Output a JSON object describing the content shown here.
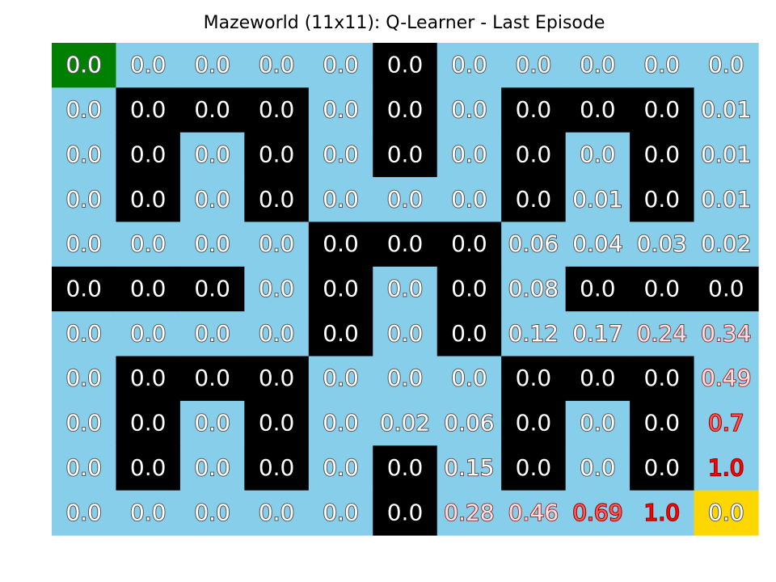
{
  "chart_data": {
    "type": "heatmap",
    "title": "Mazeworld (11x11): Q-Learner - Last Episode",
    "rows": 11,
    "cols": 11,
    "colors": {
      "open": "#87ceeb",
      "wall": "#000000",
      "start": "#008000",
      "goal": "#ffd700",
      "text_fill": "#ffffff",
      "text_outline_low": "#555555",
      "text_outline_high": "#ff0000"
    },
    "legend": {
      "W": "wall",
      "O": "open",
      "S": "start",
      "G": "goal"
    },
    "cell_types": [
      [
        "S",
        "O",
        "O",
        "O",
        "O",
        "W",
        "O",
        "O",
        "O",
        "O",
        "O"
      ],
      [
        "O",
        "W",
        "W",
        "W",
        "O",
        "W",
        "O",
        "W",
        "W",
        "W",
        "O"
      ],
      [
        "O",
        "W",
        "O",
        "W",
        "O",
        "W",
        "O",
        "W",
        "O",
        "W",
        "O"
      ],
      [
        "O",
        "W",
        "O",
        "W",
        "O",
        "O",
        "O",
        "W",
        "O",
        "W",
        "O"
      ],
      [
        "O",
        "O",
        "O",
        "O",
        "W",
        "W",
        "W",
        "O",
        "O",
        "O",
        "O"
      ],
      [
        "W",
        "W",
        "W",
        "O",
        "W",
        "O",
        "W",
        "O",
        "W",
        "W",
        "W"
      ],
      [
        "O",
        "O",
        "O",
        "O",
        "W",
        "O",
        "W",
        "O",
        "O",
        "O",
        "O"
      ],
      [
        "O",
        "W",
        "W",
        "W",
        "O",
        "O",
        "O",
        "W",
        "W",
        "W",
        "O"
      ],
      [
        "O",
        "W",
        "O",
        "W",
        "O",
        "O",
        "O",
        "W",
        "O",
        "W",
        "O"
      ],
      [
        "O",
        "W",
        "O",
        "W",
        "O",
        "W",
        "O",
        "W",
        "O",
        "W",
        "O"
      ],
      [
        "O",
        "O",
        "O",
        "O",
        "O",
        "W",
        "O",
        "O",
        "O",
        "O",
        "G"
      ]
    ],
    "values": [
      [
        "0.0",
        "0.0",
        "0.0",
        "0.0",
        "0.0",
        "0.0",
        "0.0",
        "0.0",
        "0.0",
        "0.0",
        "0.0"
      ],
      [
        "0.0",
        "0.0",
        "0.0",
        "0.0",
        "0.0",
        "0.0",
        "0.0",
        "0.0",
        "0.0",
        "0.0",
        "0.01"
      ],
      [
        "0.0",
        "0.0",
        "0.0",
        "0.0",
        "0.0",
        "0.0",
        "0.0",
        "0.0",
        "0.0",
        "0.0",
        "0.01"
      ],
      [
        "0.0",
        "0.0",
        "0.0",
        "0.0",
        "0.0",
        "0.0",
        "0.0",
        "0.0",
        "0.01",
        "0.0",
        "0.01"
      ],
      [
        "0.0",
        "0.0",
        "0.0",
        "0.0",
        "0.0",
        "0.0",
        "0.0",
        "0.06",
        "0.04",
        "0.03",
        "0.02"
      ],
      [
        "0.0",
        "0.0",
        "0.0",
        "0.0",
        "0.0",
        "0.0",
        "0.0",
        "0.08",
        "0.0",
        "0.0",
        "0.0"
      ],
      [
        "0.0",
        "0.0",
        "0.0",
        "0.0",
        "0.0",
        "0.0",
        "0.0",
        "0.12",
        "0.17",
        "0.24",
        "0.34"
      ],
      [
        "0.0",
        "0.0",
        "0.0",
        "0.0",
        "0.0",
        "0.0",
        "0.0",
        "0.0",
        "0.0",
        "0.0",
        "0.49"
      ],
      [
        "0.0",
        "0.0",
        "0.0",
        "0.0",
        "0.0",
        "0.02",
        "0.06",
        "0.0",
        "0.0",
        "0.0",
        "0.7"
      ],
      [
        "0.0",
        "0.0",
        "0.0",
        "0.0",
        "0.0",
        "0.0",
        "0.15",
        "0.0",
        "0.0",
        "0.0",
        "1.0"
      ],
      [
        "0.0",
        "0.0",
        "0.0",
        "0.0",
        "0.0",
        "0.0",
        "0.28",
        "0.46",
        "0.69",
        "1.0",
        "0.0"
      ]
    ]
  }
}
